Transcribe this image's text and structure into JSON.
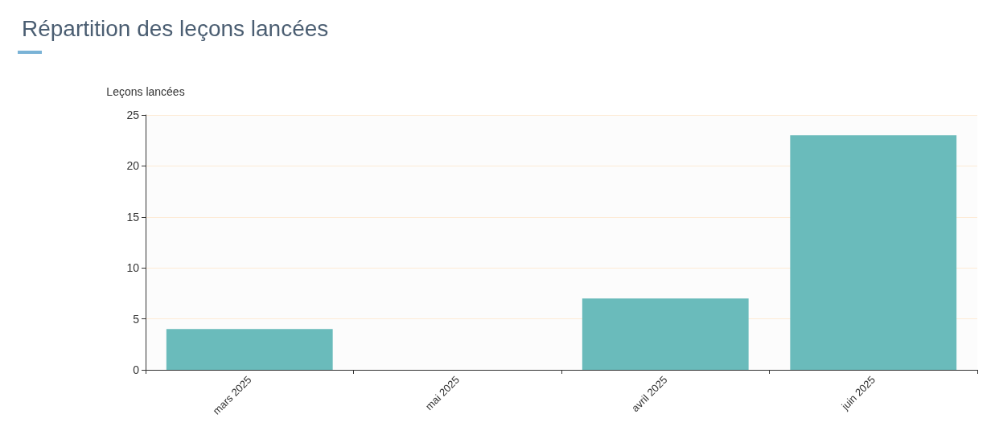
{
  "chart_data": {
    "type": "bar",
    "title": "Répartition des leçons lancées",
    "ylabel": "Leçons lancées",
    "categories": [
      "mars 2025",
      "mai 2025",
      "avril 2025",
      "juin 2025"
    ],
    "values": [
      4,
      0,
      7,
      23
    ],
    "color": "#6abbbb",
    "ylim": [
      0,
      25
    ],
    "yticks": [
      0,
      5,
      10,
      15,
      20,
      25
    ],
    "grid": "y"
  }
}
